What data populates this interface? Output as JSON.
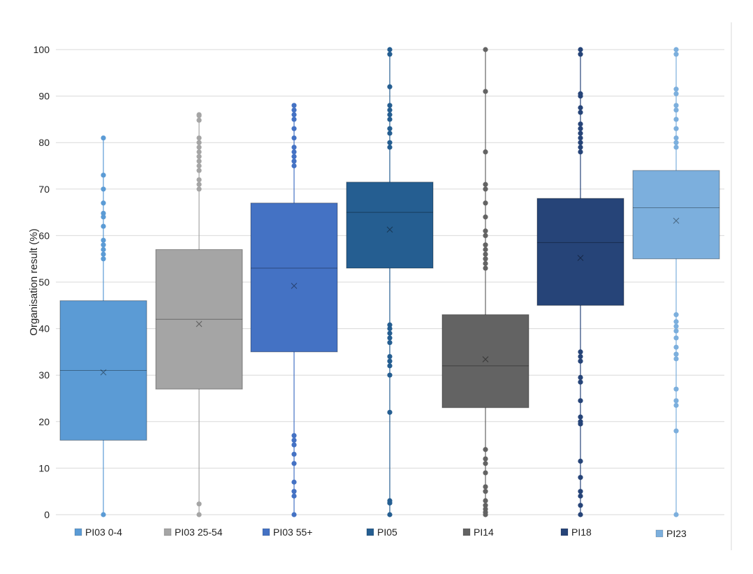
{
  "chart_data": {
    "type": "boxplot",
    "ylabel": "Organisation result (%)",
    "ylim": [
      0,
      100
    ],
    "yticks": [
      0,
      10,
      20,
      30,
      40,
      50,
      60,
      70,
      80,
      90,
      100
    ],
    "grid": true,
    "legend_position": "bottom",
    "series": [
      {
        "name": "PI03 0-4",
        "color": "#5b9bd5",
        "whisker_low": 0,
        "q1": 16,
        "median": 31,
        "q3": 46,
        "whisker_high": 81,
        "mean": 30.6,
        "outliers": [
          0,
          55,
          56,
          57,
          58,
          59,
          62,
          64,
          64.8,
          67,
          70,
          73,
          81
        ]
      },
      {
        "name": "PI03 25-54",
        "color": "#a5a5a5",
        "whisker_low": 0,
        "q1": 27,
        "median": 42,
        "q3": 57,
        "whisker_high": 86,
        "mean": 41,
        "outliers": [
          0,
          2.3,
          70,
          71,
          72,
          74,
          75,
          76,
          77,
          78,
          79,
          80,
          81,
          84.8,
          85.8,
          86
        ]
      },
      {
        "name": "PI03 55+",
        "color": "#4472c4",
        "whisker_low": 0,
        "q1": 35,
        "median": 53,
        "q3": 67,
        "whisker_high": 88,
        "mean": 49.2,
        "outliers": [
          0,
          4,
          5,
          7,
          11,
          13,
          15,
          16,
          17,
          75,
          76,
          77,
          78,
          79,
          81,
          83,
          85,
          86,
          87,
          88
        ]
      },
      {
        "name": "PI05",
        "color": "#255e91",
        "whisker_low": 0,
        "q1": 53,
        "median": 65,
        "q3": 71.5,
        "whisker_high": 100,
        "mean": 61.3,
        "outliers": [
          0,
          2.5,
          3,
          22,
          30,
          32,
          33,
          34,
          37,
          38,
          39,
          40,
          40.8,
          79,
          80,
          82,
          83,
          85,
          86,
          87,
          88,
          92,
          99,
          100
        ]
      },
      {
        "name": "PI14",
        "color": "#636363",
        "whisker_low": 0,
        "q1": 23,
        "median": 32,
        "q3": 43,
        "whisker_high": 100,
        "mean": 33.4,
        "outliers": [
          0,
          0.5,
          1.2,
          2,
          3,
          5,
          6,
          9,
          11,
          12,
          14,
          53,
          54,
          55,
          56,
          57,
          58,
          60,
          61,
          64,
          67,
          70,
          71,
          78,
          91,
          100
        ]
      },
      {
        "name": "PI18",
        "color": "#264478",
        "whisker_low": 0,
        "q1": 45,
        "median": 58.5,
        "q3": 68,
        "whisker_high": 100,
        "mean": 55.2,
        "outliers": [
          0,
          2,
          4,
          5,
          8,
          11.5,
          19.5,
          20,
          21,
          24.5,
          28.5,
          29.5,
          33,
          34,
          35,
          78,
          79,
          80,
          81,
          82,
          83,
          84,
          86.5,
          87.5,
          90,
          90.5,
          99,
          100
        ]
      },
      {
        "name": "PI23",
        "color": "#7cafdd",
        "whisker_low": 0,
        "q1": 55,
        "median": 66,
        "q3": 74,
        "whisker_high": 100,
        "mean": 63.2,
        "outliers": [
          0,
          18,
          23.5,
          24.5,
          27,
          33.5,
          34.5,
          36,
          38,
          39.5,
          40.5,
          41.5,
          43,
          79,
          80,
          81,
          83,
          85,
          87,
          88,
          90.5,
          91.5,
          99,
          100
        ]
      }
    ]
  }
}
